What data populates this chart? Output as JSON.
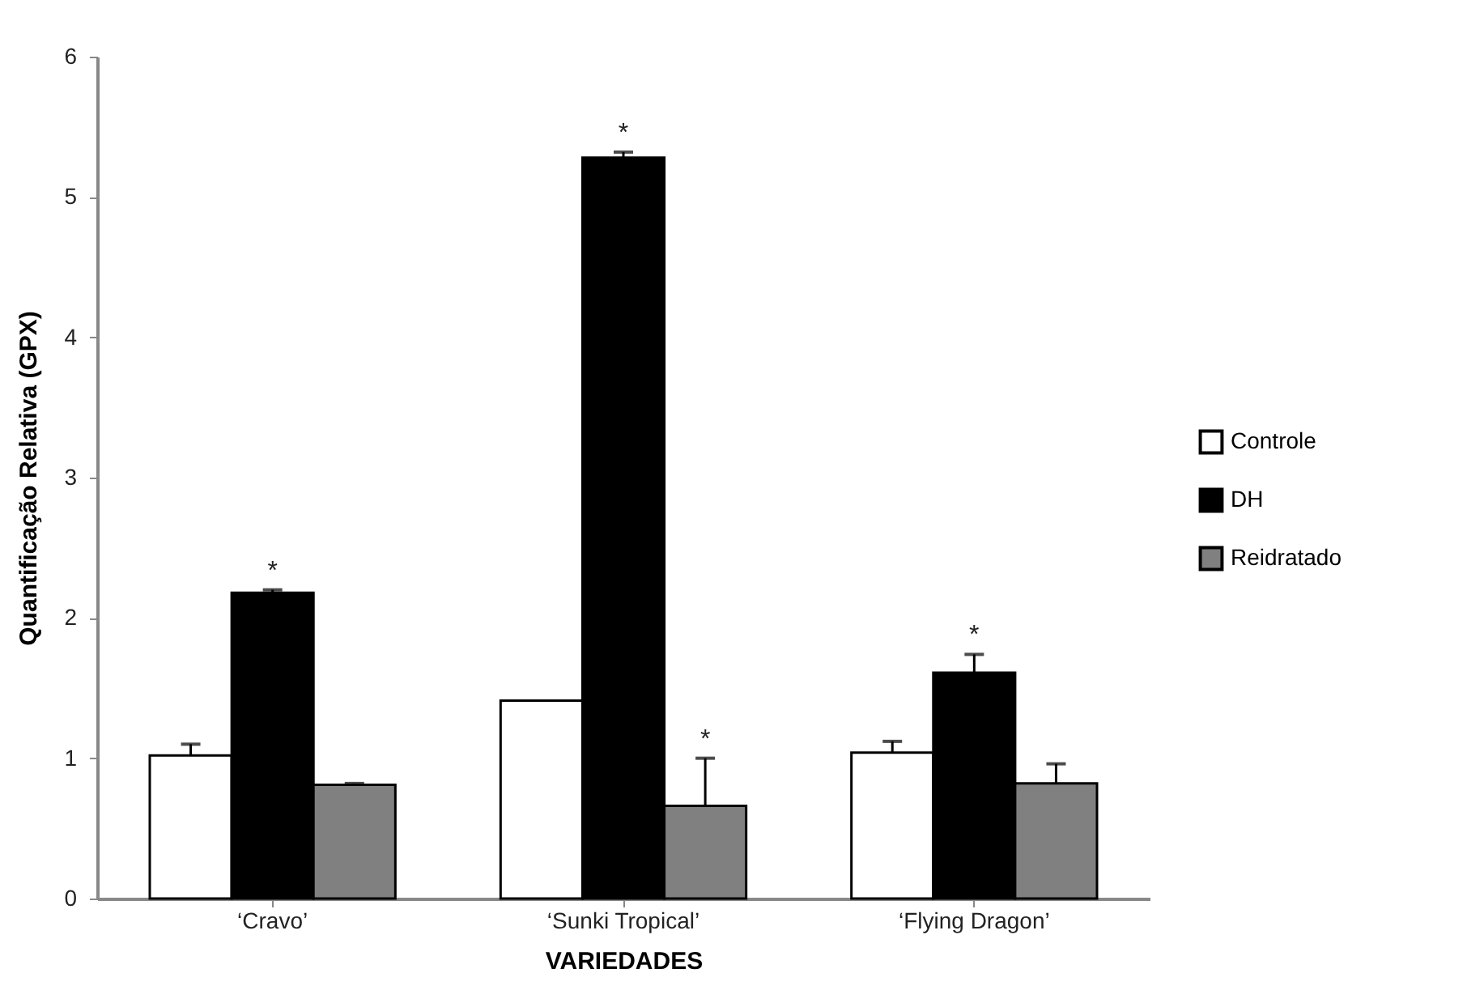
{
  "chart_data": {
    "type": "bar",
    "ylabel": "Quantificação Relativa (GPX)",
    "xlabel": "VARIEDADES",
    "categories": [
      "‘Cravo’",
      "‘Sunki Tropical’",
      "‘Flying Dragon’"
    ],
    "series": [
      {
        "name": "Controle",
        "color": "#ffffff",
        "values": [
          1.02,
          1.41,
          1.04
        ],
        "errors": [
          [
            1.02,
            1.1
          ],
          null,
          [
            1.04,
            1.12
          ]
        ]
      },
      {
        "name": "DH",
        "color": "#000000",
        "values": [
          2.18,
          5.28,
          1.61
        ],
        "errors": [
          [
            2.18,
            2.2
          ],
          [
            5.28,
            5.32
          ],
          [
            1.61,
            1.74
          ]
        ],
        "value_labels": [
          "*",
          "*",
          "*"
        ]
      },
      {
        "name": "Reidratado",
        "color": "#808080",
        "values": [
          0.81,
          0.66,
          0.82
        ],
        "errors": [
          [
            0.81,
            0.82
          ],
          [
            0.66,
            1.0
          ],
          [
            0.82,
            0.96
          ]
        ],
        "value_labels": [
          null,
          "*",
          null
        ]
      }
    ],
    "ylim": [
      0,
      6
    ],
    "yticks": [
      0,
      1,
      2,
      3,
      4,
      5,
      6
    ],
    "grid": false,
    "legend": "right"
  }
}
